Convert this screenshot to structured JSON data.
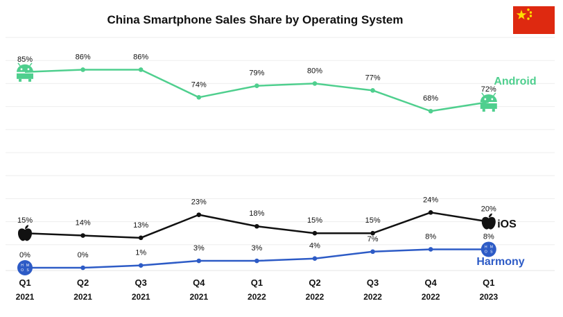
{
  "chart_data": {
    "type": "line",
    "title": "China Smartphone Sales Share by Operating System",
    "categories": [
      {
        "quarter": "Q1",
        "year": "2021"
      },
      {
        "quarter": "Q2",
        "year": "2021"
      },
      {
        "quarter": "Q3",
        "year": "2021"
      },
      {
        "quarter": "Q4",
        "year": "2021"
      },
      {
        "quarter": "Q1",
        "year": "2022"
      },
      {
        "quarter": "Q2",
        "year": "2022"
      },
      {
        "quarter": "Q3",
        "year": "2022"
      },
      {
        "quarter": "Q4",
        "year": "2022"
      },
      {
        "quarter": "Q1",
        "year": "2023"
      }
    ],
    "series": [
      {
        "name": "Android",
        "color": "#4fcf8e",
        "values": [
          85,
          86,
          86,
          74,
          79,
          80,
          77,
          68,
          72
        ],
        "labels": [
          "85%",
          "86%",
          "86%",
          "74%",
          "79%",
          "80%",
          "77%",
          "68%",
          "72%"
        ],
        "icon": "android-icon"
      },
      {
        "name": "iOS",
        "color": "#111111",
        "values": [
          15,
          14,
          13,
          23,
          18,
          15,
          15,
          24,
          20
        ],
        "labels": [
          "15%",
          "14%",
          "13%",
          "23%",
          "18%",
          "15%",
          "15%",
          "24%",
          "20%"
        ],
        "icon": "apple-icon"
      },
      {
        "name": "Harmony",
        "color": "#2d5bc6",
        "values": [
          0,
          0,
          1,
          3,
          3,
          4,
          7,
          8,
          8
        ],
        "labels": [
          "0%",
          "0%",
          "1%",
          "3%",
          "3%",
          "4%",
          "7%",
          "8%",
          "8%"
        ],
        "icon": "harmony-os-icon"
      }
    ],
    "ylim": [
      0,
      100
    ],
    "grid": true,
    "legend": "inline-right",
    "flag_icon": "china-flag-icon"
  }
}
